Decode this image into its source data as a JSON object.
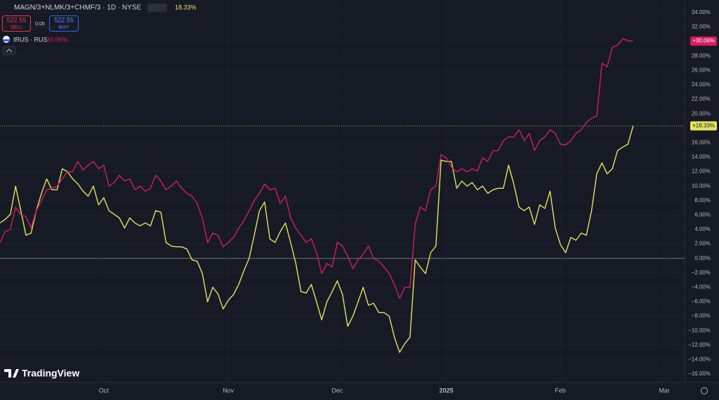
{
  "chart_data": {
    "type": "line",
    "title": "MAGN/3+NLMK/3+CHMF/3 · 1D · NYSE",
    "title_change": "18.33%",
    "sell_price": "522.55",
    "sell_label": "SELL",
    "spread": "0.00",
    "buy_price": "522.55",
    "buy_label": "BUY",
    "brand": "TradingView",
    "categories": [
      null,
      null,
      null,
      null,
      null,
      null,
      null,
      null,
      null,
      null,
      null,
      null,
      null,
      null,
      null,
      null,
      null,
      null,
      null,
      null,
      "Oct",
      null,
      null,
      null,
      null,
      null,
      null,
      null,
      null,
      null,
      null,
      null,
      null,
      null,
      null,
      null,
      null,
      null,
      null,
      null,
      null,
      null,
      null,
      null,
      "Nov",
      null,
      null,
      null,
      null,
      null,
      null,
      null,
      null,
      null,
      null,
      null,
      null,
      null,
      null,
      null,
      null,
      null,
      null,
      null,
      null,
      "Dec",
      null,
      null,
      null,
      null,
      null,
      null,
      null,
      null,
      null,
      null,
      null,
      null,
      null,
      null,
      null,
      null,
      null,
      null,
      null,
      null,
      "2025",
      null,
      null,
      null,
      null,
      null,
      null,
      null,
      null,
      null,
      null,
      null,
      null,
      null,
      null,
      null,
      null,
      null,
      null,
      null,
      null,
      null,
      "Feb",
      null,
      null,
      null,
      null,
      null,
      null,
      null,
      null,
      null,
      null,
      null,
      null,
      null,
      null,
      null,
      null,
      null,
      null,
      null,
      "Mar"
    ],
    "series": [
      {
        "name": "MAGN/3+NLMK/3+CHMF/3",
        "color": "#e6e15c",
        "badge": "+18.33%",
        "values": [
          4.9,
          5.4,
          6.1,
          10,
          6.6,
          3.2,
          3.5,
          6.6,
          9,
          11,
          9.5,
          9.5,
          12.4,
          12,
          11,
          10.3,
          9.3,
          8.6,
          10,
          7.4,
          8.4,
          6.6,
          6.1,
          5.6,
          4.2,
          5.6,
          4.9,
          4.5,
          4.9,
          4.5,
          6.6,
          6.4,
          2.2,
          1.7,
          1.6,
          1.6,
          1.3,
          -0.2,
          -0.4,
          -2.1,
          -6,
          -4,
          -4.9,
          -7,
          -5.8,
          -5,
          -3.6,
          -1.7,
          0,
          3.2,
          6.6,
          7.8,
          2.7,
          2.2,
          3.7,
          4.9,
          2.2,
          -0.7,
          -4.6,
          -4.8,
          -3.6,
          -6,
          -8.5,
          -6,
          -4.6,
          -3.1,
          -5,
          -9.4,
          -8,
          -6,
          -4,
          -6.5,
          -6.2,
          -7.5,
          -7.5,
          -8,
          -10.9,
          -13,
          -11.8,
          -10.9,
          -0.2,
          -1.2,
          -2.1,
          0.8,
          1.7,
          13.6,
          13.4,
          13.4,
          9.7,
          10.7,
          10,
          10.5,
          9.5,
          10,
          9,
          9.5,
          9.7,
          9.7,
          12.9,
          10.3,
          7.1,
          6.6,
          7.1,
          4.7,
          7.4,
          6.9,
          9.3,
          4.2,
          1.9,
          0.8,
          2.9,
          2.5,
          3.5,
          3.2,
          6.6,
          11.7,
          13.2,
          11.7,
          12.4,
          14.9,
          15.4,
          15.8,
          18.33,
          null,
          null,
          null,
          null,
          null,
          null
        ]
      },
      {
        "name": "IRUS · RUS",
        "label": "30.06%",
        "color": "#d81b60",
        "badge": "+30.06%",
        "values": [
          2.2,
          3.7,
          4,
          7.1,
          6,
          5.8,
          4.2,
          6.6,
          8,
          9.5,
          9.7,
          10,
          11,
          12,
          12,
          13.4,
          12.2,
          12.9,
          13.4,
          12.4,
          12.9,
          10,
          10.5,
          11.5,
          10.7,
          11,
          9.5,
          10,
          9.3,
          9.7,
          11.5,
          10.7,
          9.5,
          10,
          10.7,
          9.7,
          9,
          8.6,
          7.6,
          5.6,
          2.2,
          3.5,
          3.2,
          1.6,
          2.2,
          2.9,
          4.2,
          5.2,
          6.6,
          8,
          9,
          10.3,
          9.5,
          9.7,
          7.6,
          8.6,
          5.6,
          4.2,
          3.2,
          2.2,
          2.7,
          0.8,
          -2.1,
          -0.7,
          -1.2,
          2.2,
          1.7,
          0.3,
          -1.4,
          -0.2,
          0.6,
          1.7,
          0,
          -0.4,
          -1.2,
          -2.1,
          -3.6,
          -5.5,
          -4,
          -4,
          4.7,
          7.1,
          6.6,
          9.5,
          10,
          14.4,
          13.9,
          12.6,
          12,
          12.4,
          12,
          12.4,
          12.1,
          13.9,
          13.4,
          14.9,
          14.9,
          16.3,
          16.8,
          16.8,
          17.8,
          16.3,
          17.3,
          14.9,
          16.3,
          16.8,
          17.8,
          17.3,
          15.8,
          15.7,
          16.3,
          17.3,
          17.8,
          18.8,
          19.4,
          19.7,
          27,
          26.5,
          29.2,
          29.5,
          30.4,
          30.1,
          30.06,
          null,
          null,
          null,
          null,
          null,
          null
        ]
      }
    ],
    "ylim": [
      -16,
      34
    ],
    "yticks": [
      {
        "value": 34,
        "label": "34.00%"
      },
      {
        "value": 32,
        "label": "32.00%"
      },
      {
        "value": 30,
        "label": "30.00%"
      },
      {
        "value": 28,
        "label": "28.00%"
      },
      {
        "value": 26,
        "label": "26.00%"
      },
      {
        "value": 24,
        "label": "24.00%"
      },
      {
        "value": 22,
        "label": "22.00%"
      },
      {
        "value": 20,
        "label": "20.00%"
      },
      {
        "value": 18,
        "label": "18.00%"
      },
      {
        "value": 16,
        "label": "16.00%"
      },
      {
        "value": 14,
        "label": "14.00%"
      },
      {
        "value": 12,
        "label": "12.00%"
      },
      {
        "value": 10,
        "label": "10.00%"
      },
      {
        "value": 8,
        "label": "8.00%"
      },
      {
        "value": 6,
        "label": "6.00%"
      },
      {
        "value": 4,
        "label": "4.00%"
      },
      {
        "value": 2,
        "label": "2.00%"
      },
      {
        "value": 0,
        "label": "0.00%"
      },
      {
        "value": -2,
        "label": "−2.00%"
      },
      {
        "value": -4,
        "label": "−4.00%"
      },
      {
        "value": -6,
        "label": "−6.00%"
      },
      {
        "value": -8,
        "label": "−8.00%"
      },
      {
        "value": -10,
        "label": "−10.00%"
      },
      {
        "value": -12,
        "label": "−12.00%"
      },
      {
        "value": -14,
        "label": "−14.00%"
      },
      {
        "value": -16,
        "label": "−16.00%"
      }
    ],
    "grid": true
  }
}
